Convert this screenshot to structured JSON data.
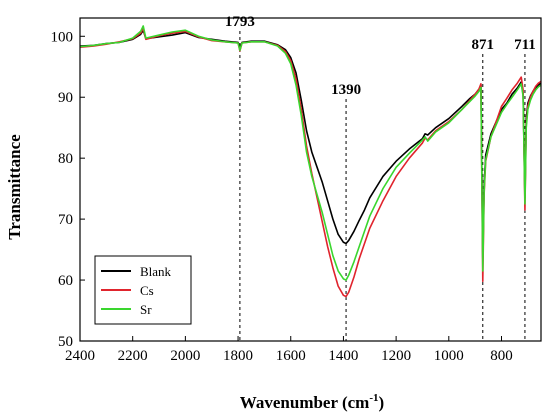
{
  "chart_data": {
    "type": "line",
    "title": "",
    "xlabel_main": "Wavenumber (cm",
    "xlabel_sup": "-1",
    "xlabel_close": ")",
    "ylabel": "Transmittance",
    "xlim": [
      2400,
      650
    ],
    "x_reversed": true,
    "ylim": [
      50,
      103
    ],
    "x_ticks": [
      2400,
      2200,
      2000,
      1800,
      1600,
      1400,
      1200,
      1000,
      800
    ],
    "y_ticks": [
      50,
      60,
      70,
      80,
      90,
      100
    ],
    "grid": false,
    "legend_position": "bottom-left",
    "peak_markers": [
      {
        "x": 1793,
        "label": "1793"
      },
      {
        "x": 1390,
        "label": "1390"
      },
      {
        "x": 871,
        "label": "871"
      },
      {
        "x": 711,
        "label": "711"
      }
    ],
    "series": [
      {
        "name": "Blank",
        "color": "#000000",
        "x": [
          2400,
          2350,
          2300,
          2250,
          2200,
          2170,
          2160,
          2150,
          2100,
          2050,
          2000,
          1950,
          1900,
          1850,
          1800,
          1793,
          1785,
          1750,
          1700,
          1650,
          1620,
          1600,
          1580,
          1560,
          1540,
          1520,
          1500,
          1480,
          1460,
          1440,
          1420,
          1400,
          1390,
          1380,
          1360,
          1340,
          1320,
          1300,
          1250,
          1200,
          1150,
          1100,
          1090,
          1080,
          1050,
          1000,
          950,
          920,
          900,
          885,
          878,
          871,
          866,
          860,
          840,
          820,
          800,
          780,
          760,
          740,
          725,
          718,
          711,
          706,
          700,
          690,
          680,
          670,
          660,
          650
        ],
        "y": [
          98.4,
          98.5,
          98.8,
          99.0,
          99.5,
          100.3,
          101.0,
          99.6,
          99.9,
          100.2,
          100.6,
          99.8,
          99.5,
          99.2,
          99.0,
          97.9,
          99.0,
          99.2,
          99.2,
          98.6,
          97.8,
          96.5,
          94.0,
          89.5,
          84.5,
          81.0,
          78.5,
          76.0,
          73.0,
          70.0,
          67.5,
          66.2,
          66.0,
          66.5,
          68.0,
          69.8,
          71.5,
          73.5,
          77.0,
          79.5,
          81.5,
          83.2,
          84.0,
          83.8,
          85.0,
          86.5,
          88.5,
          89.8,
          90.5,
          91.3,
          92.0,
          63.5,
          75.5,
          80.5,
          84.0,
          86.0,
          88.0,
          89.0,
          90.5,
          91.5,
          92.5,
          90.5,
          73.5,
          86.5,
          89.0,
          90.2,
          91.0,
          91.6,
          92.0,
          92.3
        ]
      },
      {
        "name": "Cs",
        "color": "#e0242d",
        "x": [
          2400,
          2350,
          2300,
          2250,
          2200,
          2170,
          2160,
          2150,
          2100,
          2050,
          2000,
          1950,
          1900,
          1850,
          1800,
          1793,
          1785,
          1750,
          1700,
          1650,
          1620,
          1600,
          1580,
          1560,
          1540,
          1520,
          1500,
          1480,
          1460,
          1440,
          1420,
          1400,
          1390,
          1380,
          1360,
          1340,
          1320,
          1300,
          1250,
          1200,
          1150,
          1100,
          1090,
          1080,
          1050,
          1000,
          950,
          920,
          900,
          885,
          878,
          871,
          866,
          860,
          840,
          820,
          800,
          780,
          760,
          740,
          725,
          718,
          711,
          706,
          700,
          690,
          680,
          670,
          660,
          650
        ],
        "y": [
          98.2,
          98.4,
          98.7,
          99.1,
          99.6,
          100.5,
          101.3,
          99.5,
          100.1,
          100.5,
          100.8,
          99.9,
          99.3,
          99.1,
          98.9,
          97.6,
          98.9,
          99.1,
          99.1,
          98.5,
          97.5,
          96.0,
          93.0,
          88.0,
          82.0,
          77.5,
          73.5,
          69.5,
          65.5,
          62.0,
          59.0,
          57.5,
          57.3,
          58.0,
          60.5,
          63.5,
          66.0,
          68.5,
          73.0,
          77.0,
          80.0,
          82.5,
          83.3,
          83.0,
          84.5,
          86.0,
          88.0,
          89.5,
          90.5,
          91.4,
          92.2,
          59.8,
          74.0,
          79.5,
          83.5,
          86.0,
          88.5,
          89.8,
          91.2,
          92.3,
          93.3,
          91.2,
          71.5,
          85.5,
          88.5,
          90.0,
          91.0,
          91.8,
          92.3,
          92.6
        ]
      },
      {
        "name": "Sr",
        "color": "#3ad62e",
        "x": [
          2400,
          2350,
          2300,
          2250,
          2200,
          2170,
          2160,
          2150,
          2100,
          2050,
          2000,
          1950,
          1900,
          1850,
          1800,
          1793,
          1785,
          1750,
          1700,
          1650,
          1620,
          1600,
          1580,
          1560,
          1540,
          1520,
          1500,
          1480,
          1460,
          1440,
          1420,
          1400,
          1390,
          1380,
          1360,
          1340,
          1320,
          1300,
          1250,
          1200,
          1150,
          1100,
          1090,
          1080,
          1050,
          1000,
          950,
          920,
          900,
          885,
          878,
          871,
          866,
          860,
          840,
          820,
          800,
          780,
          760,
          740,
          725,
          718,
          711,
          706,
          700,
          690,
          680,
          670,
          660,
          650
        ],
        "y": [
          98.3,
          98.5,
          98.8,
          99.0,
          99.7,
          100.8,
          101.7,
          99.7,
          100.2,
          100.7,
          101.0,
          100.0,
          99.4,
          99.1,
          98.9,
          97.7,
          98.9,
          99.1,
          99.1,
          98.4,
          97.2,
          95.5,
          92.0,
          87.0,
          81.0,
          77.0,
          74.0,
          71.0,
          67.5,
          64.0,
          61.5,
          60.2,
          60.0,
          60.8,
          63.0,
          65.5,
          68.0,
          70.5,
          75.0,
          78.5,
          80.8,
          83.0,
          83.5,
          82.8,
          84.3,
          85.8,
          88.0,
          89.3,
          90.2,
          91.0,
          91.6,
          61.5,
          74.5,
          79.8,
          83.5,
          85.5,
          87.5,
          88.8,
          90.0,
          91.2,
          92.2,
          90.2,
          72.5,
          85.0,
          88.0,
          89.5,
          90.5,
          91.2,
          91.7,
          92.0
        ]
      }
    ]
  }
}
